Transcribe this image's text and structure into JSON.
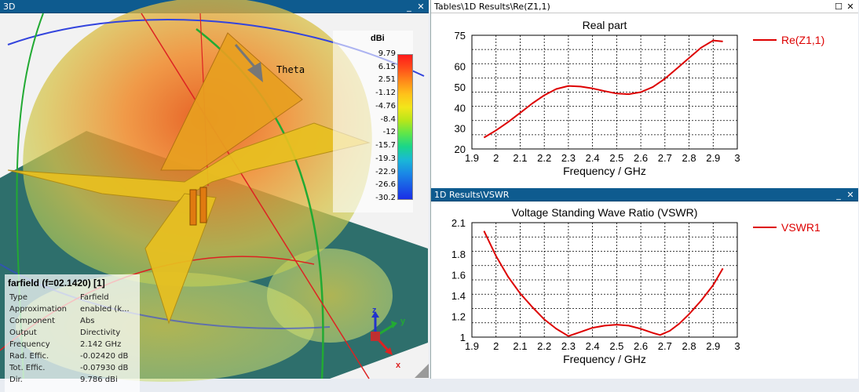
{
  "panel3d": {
    "title": "3D",
    "theta_label": "Theta",
    "colorbar": {
      "unit": "dBi",
      "ticks": [
        "9.79",
        "6.15",
        "2.51",
        "-1.12",
        "-4.76",
        "-8.4",
        "-12",
        "-15.7",
        "-19.3",
        "-22.9",
        "-26.6",
        "-30.2"
      ],
      "colors": [
        "#ff1a1a",
        "#ff4d1a",
        "#ff8a1a",
        "#ffc21a",
        "#f2e61a",
        "#b8e61a",
        "#5ee64a",
        "#1ad68a",
        "#1ab8d6",
        "#1a8ae6",
        "#1a5ce6",
        "#1a2ee6"
      ]
    },
    "info": {
      "title": "farfield (f=02.1420) [1]",
      "rows": [
        {
          "label": "Type",
          "value": "Farfield"
        },
        {
          "label": "Approximation",
          "value": "enabled (k..."
        },
        {
          "label": "Component",
          "value": "Abs"
        },
        {
          "label": "Output",
          "value": "Directivity"
        },
        {
          "label": "Frequency",
          "value": "2.142 GHz"
        },
        {
          "label": "Rad. Effic.",
          "value": "-0.02420 dB"
        },
        {
          "label": "Tot. Effic.",
          "value": "-0.07930 dB"
        },
        {
          "label": "Dir.",
          "value": "9.786 dBi"
        }
      ]
    },
    "axes": {
      "x": "x",
      "y": "y",
      "z": "z"
    },
    "buttons": {
      "minimize": "_",
      "close": "✕"
    }
  },
  "panel_re": {
    "title": "Tables\\1D Results\\Re(Z1,1)",
    "buttons": {
      "restore": "☐",
      "close": "✕"
    }
  },
  "panel_vswr": {
    "title": "1D Results\\VSWR",
    "buttons": {
      "minimize": "_",
      "close": "✕"
    }
  },
  "chart_data": [
    {
      "type": "line",
      "title": "Real part",
      "xlabel": "Frequency / GHz",
      "ylabel": "",
      "xlim": [
        1.9,
        3.0
      ],
      "ylim": [
        20,
        75
      ],
      "xticks": [
        "1.9",
        "2",
        "2.1",
        "2.2",
        "2.3",
        "2.4",
        "2.5",
        "2.6",
        "2.7",
        "2.8",
        "2.9",
        "3"
      ],
      "yticks": [
        "20",
        "30",
        "40",
        "50",
        "60",
        "75"
      ],
      "grid": true,
      "legend": "right",
      "series": [
        {
          "name": "Re(Z1,1)",
          "color": "#dd0000",
          "x": [
            1.95,
            2.0,
            2.05,
            2.1,
            2.15,
            2.2,
            2.25,
            2.3,
            2.35,
            2.4,
            2.45,
            2.5,
            2.55,
            2.6,
            2.65,
            2.7,
            2.75,
            2.8,
            2.85,
            2.9,
            2.94
          ],
          "y": [
            25.5,
            29,
            33,
            37.5,
            42,
            46,
            49,
            50.5,
            50.2,
            49.3,
            48,
            46.8,
            46.5,
            47.5,
            50,
            54,
            59,
            64,
            69,
            72.5,
            72
          ]
        }
      ]
    },
    {
      "type": "line",
      "title": "Voltage Standing Wave Ratio (VSWR)",
      "xlabel": "Frequency / GHz",
      "ylabel": "",
      "xlim": [
        1.9,
        3.0
      ],
      "ylim": [
        1.0,
        2.1
      ],
      "xticks": [
        "1.9",
        "2",
        "2.1",
        "2.2",
        "2.3",
        "2.4",
        "2.5",
        "2.6",
        "2.7",
        "2.8",
        "2.9",
        "3"
      ],
      "yticks": [
        "1",
        "1.2",
        "1.4",
        "1.6",
        "1.8",
        "2.1"
      ],
      "grid": true,
      "legend": "right",
      "series": [
        {
          "name": "VSWR1",
          "color": "#dd0000",
          "x": [
            1.95,
            2.0,
            2.05,
            2.1,
            2.15,
            2.2,
            2.25,
            2.3,
            2.35,
            2.4,
            2.45,
            2.5,
            2.55,
            2.6,
            2.65,
            2.68,
            2.72,
            2.76,
            2.8,
            2.85,
            2.9,
            2.94
          ],
          "y": [
            2.02,
            1.78,
            1.58,
            1.42,
            1.29,
            1.17,
            1.08,
            1.01,
            1.05,
            1.09,
            1.11,
            1.12,
            1.11,
            1.08,
            1.04,
            1.02,
            1.06,
            1.13,
            1.22,
            1.35,
            1.5,
            1.66
          ]
        }
      ]
    }
  ]
}
